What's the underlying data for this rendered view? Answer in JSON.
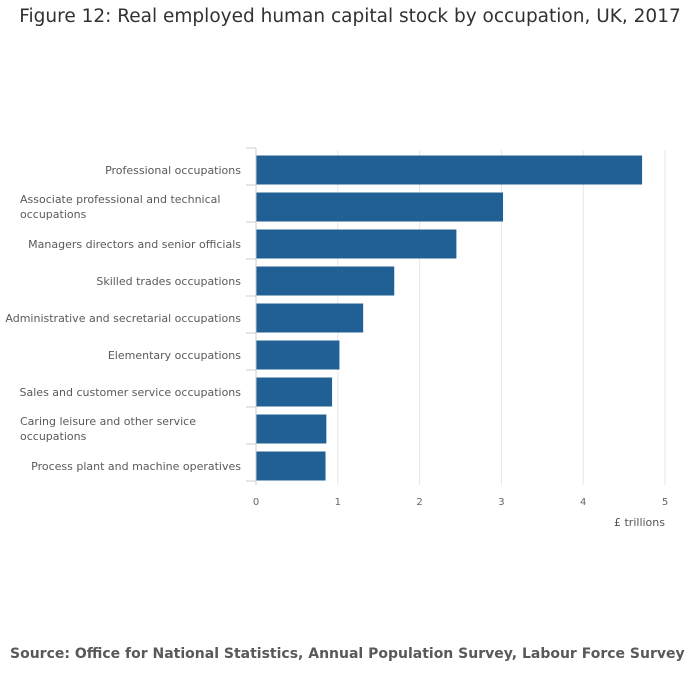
{
  "chart_data": {
    "type": "bar",
    "orientation": "horizontal",
    "title": "Figure 12: Real employed human capital stock by occupation, UK, 2017",
    "categories": [
      "Professional occupations",
      "Associate professional and technical occupations",
      "Managers directors and senior officials",
      "Skilled trades occupations",
      "Administrative and secretarial occupations",
      "Elementary occupations",
      "Sales and customer service occupations",
      "Caring leisure and other service occupations",
      "Process plant and machine operatives"
    ],
    "values": [
      4.72,
      3.02,
      2.45,
      1.69,
      1.31,
      1.02,
      0.93,
      0.86,
      0.85
    ],
    "xlabel": "£ trillions",
    "xlim": [
      0,
      5
    ],
    "xticks": [
      "0",
      "1",
      "2",
      "3",
      "4",
      "5"
    ],
    "grid": true,
    "bar_color": "#206095",
    "source": "Source: Office for National Statistics, Annual Population Survey, Labour Force Survey"
  }
}
